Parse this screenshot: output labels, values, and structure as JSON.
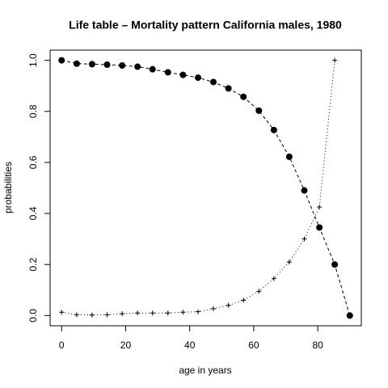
{
  "chart_data": {
    "type": "line",
    "title": "Life table – Mortality pattern California males, 1980",
    "x_label": "age in years",
    "y_label": "probabilities",
    "x": [
      0,
      4.7,
      9.5,
      14.2,
      18.9,
      23.7,
      28.4,
      33.2,
      37.9,
      42.6,
      47.4,
      52.1,
      56.8,
      61.6,
      66.3,
      71.1,
      75.8,
      80.5,
      85.3,
      90
    ],
    "series": [
      {
        "color": "#000000",
        "marker": "circle",
        "linestyle": "dashed",
        "values": [
          1.0,
          0.987,
          0.985,
          0.983,
          0.98,
          0.975,
          0.965,
          0.953,
          0.943,
          0.932,
          0.915,
          0.89,
          0.857,
          0.803,
          0.727,
          0.622,
          0.49,
          0.345,
          0.2,
          0.0
        ]
      },
      {
        "color": "#000000",
        "marker": "plus",
        "linestyle": "dotted",
        "values": [
          0.013,
          0.003,
          0.002,
          0.003,
          0.007,
          0.01,
          0.01,
          0.01,
          0.013,
          0.015,
          0.027,
          0.04,
          0.06,
          0.095,
          0.145,
          0.21,
          0.3,
          0.425,
          1.0,
          null
        ]
      }
    ],
    "xlim": [
      -3.6,
      93.6
    ],
    "ylim": [
      -0.04,
      1.04
    ],
    "xticks": [
      0,
      20,
      40,
      60,
      80
    ],
    "yticks": [
      {
        "value": 0,
        "label": "0.0"
      },
      0.2,
      0.4,
      0.6,
      0.8,
      {
        "value": 1,
        "label": "1.0"
      }
    ]
  }
}
